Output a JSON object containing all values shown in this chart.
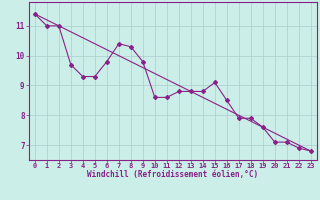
{
  "x": [
    0,
    1,
    2,
    3,
    4,
    5,
    6,
    7,
    8,
    9,
    10,
    11,
    12,
    13,
    14,
    15,
    16,
    17,
    18,
    19,
    20,
    21,
    22,
    23
  ],
  "series1": [
    11.4,
    11.0,
    11.0,
    9.7,
    9.3,
    9.3,
    9.8,
    10.4,
    10.3,
    9.8,
    8.6,
    8.6,
    8.8,
    8.8,
    8.8,
    9.1,
    8.5,
    7.9,
    7.9,
    7.6,
    7.1,
    7.1,
    6.9,
    6.8
  ],
  "trend_x": [
    0,
    23
  ],
  "trend_y": [
    11.4,
    6.8
  ],
  "line_color": "#882288",
  "bg_color": "#cceee8",
  "grid_color": "#aacccc",
  "xlabel": "Windchill (Refroidissement éolien,°C)",
  "yticks": [
    7,
    8,
    9,
    10,
    11
  ],
  "xticks": [
    0,
    1,
    2,
    3,
    4,
    5,
    6,
    7,
    8,
    9,
    10,
    11,
    12,
    13,
    14,
    15,
    16,
    17,
    18,
    19,
    20,
    21,
    22,
    23
  ],
  "ylim": [
    6.5,
    11.8
  ],
  "xlim": [
    -0.5,
    23.5
  ],
  "tick_fontsize": 5.0,
  "xlabel_fontsize": 5.5
}
